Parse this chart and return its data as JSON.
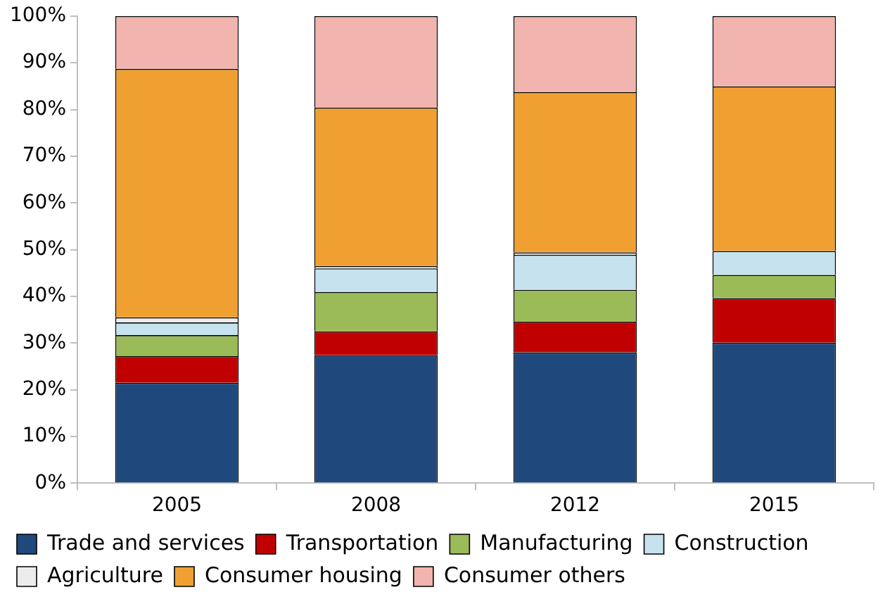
{
  "chart_data": {
    "type": "bar",
    "stacked": true,
    "categories": [
      "2005",
      "2008",
      "2012",
      "2015"
    ],
    "series": [
      {
        "name": "Trade and services",
        "color": "#1f497d",
        "values": [
          21.5,
          27.4,
          28.0,
          30.1
        ]
      },
      {
        "name": "Transportation",
        "color": "#c00000",
        "values": [
          5.7,
          5.1,
          6.6,
          9.5
        ]
      },
      {
        "name": "Manufacturing",
        "color": "#9bbb59",
        "values": [
          4.5,
          8.4,
          6.8,
          5.0
        ]
      },
      {
        "name": "Construction",
        "color": "#c6e2ee",
        "values": [
          2.7,
          5.1,
          7.5,
          5.1
        ]
      },
      {
        "name": "Agriculture",
        "color": "#ececec",
        "values": [
          1.1,
          0.5,
          0.5,
          null
        ]
      },
      {
        "name": "Consumer housing",
        "color": "#f0a030",
        "values": [
          53.2,
          33.9,
          34.3,
          35.2
        ]
      },
      {
        "name": "Consumer others",
        "color": "#f2b4ae",
        "values": [
          11.3,
          19.6,
          16.3,
          15.1
        ]
      }
    ],
    "ylim": [
      0,
      100
    ],
    "yticks": [
      {
        "value": 0,
        "label": "0%"
      },
      {
        "value": 10,
        "label": "10%"
      },
      {
        "value": 20,
        "label": "20%"
      },
      {
        "value": 30,
        "label": "30%"
      },
      {
        "value": 40,
        "label": "40%"
      },
      {
        "value": 50,
        "label": "50%"
      },
      {
        "value": 60,
        "label": "60%"
      },
      {
        "value": 70,
        "label": "70%"
      },
      {
        "value": 80,
        "label": "80%"
      },
      {
        "value": 90,
        "label": "90%"
      },
      {
        "value": 100,
        "label": "100%"
      }
    ],
    "grid": false,
    "legend": "bottom"
  }
}
